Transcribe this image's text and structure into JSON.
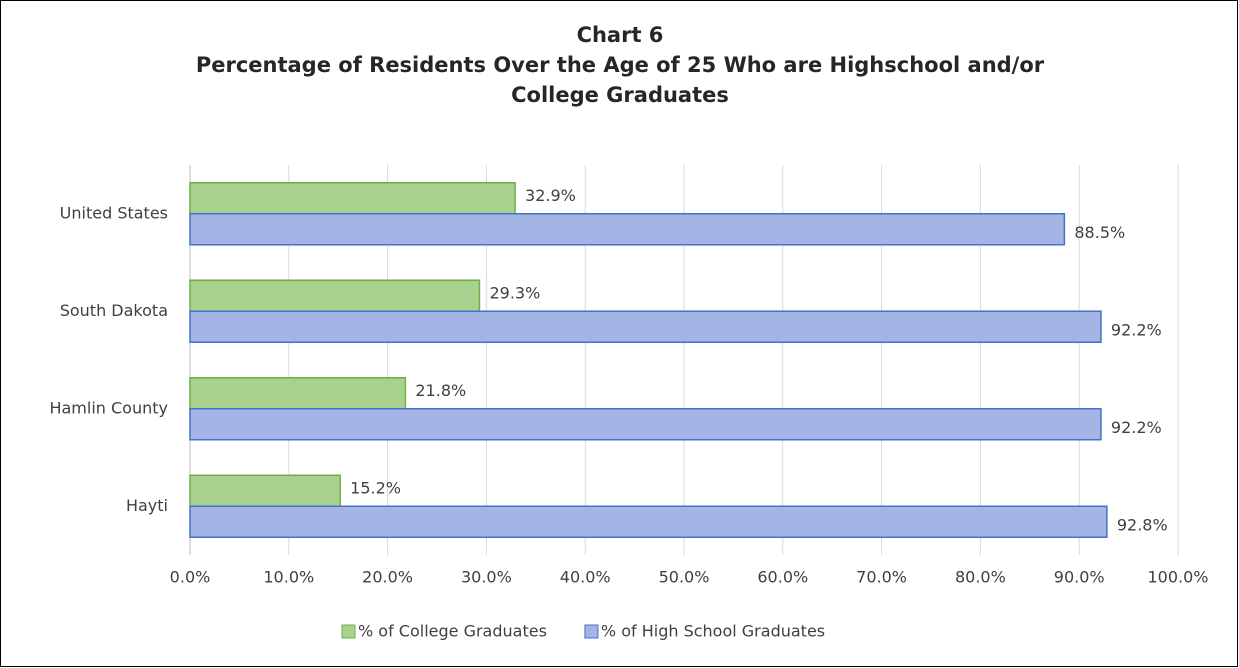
{
  "chart_data": {
    "type": "hbar",
    "title": "Chart 6",
    "subtitle": "Percentage of Residents Over the Age of 25 Who are Highschool and/or College Graduates",
    "categories": [
      "United States",
      "South Dakota",
      "Hamlin County",
      "Hayti"
    ],
    "series": [
      {
        "name": "% of College Graduates",
        "color": "#a9d18e",
        "stroke": "#70ad47",
        "values": [
          32.9,
          29.3,
          21.8,
          15.2
        ],
        "value_labels": [
          "32.9%",
          "29.3%",
          "21.8%",
          "15.2%"
        ]
      },
      {
        "name": "% of High School Graduates",
        "color": "#a4b4e4",
        "stroke": "#4472c4",
        "values": [
          88.5,
          92.2,
          92.2,
          92.8
        ],
        "value_labels": [
          "88.5%",
          "92.2%",
          "92.2%",
          "92.8%"
        ]
      }
    ],
    "xlim": [
      0,
      100
    ],
    "xticks": [
      {
        "value": 0,
        "label": "0.0%"
      },
      {
        "value": 10,
        "label": "10.0%"
      },
      {
        "value": 20,
        "label": "20.0%"
      },
      {
        "value": 30,
        "label": "30.0%"
      },
      {
        "value": 40,
        "label": "40.0%"
      },
      {
        "value": 50,
        "label": "50.0%"
      },
      {
        "value": 60,
        "label": "60.0%"
      },
      {
        "value": 70,
        "label": "70.0%"
      },
      {
        "value": 80,
        "label": "80.0%"
      },
      {
        "value": 90,
        "label": "90.0%"
      },
      {
        "value": 100,
        "label": "100.0%"
      }
    ],
    "grid": true,
    "legend": "bottom"
  }
}
